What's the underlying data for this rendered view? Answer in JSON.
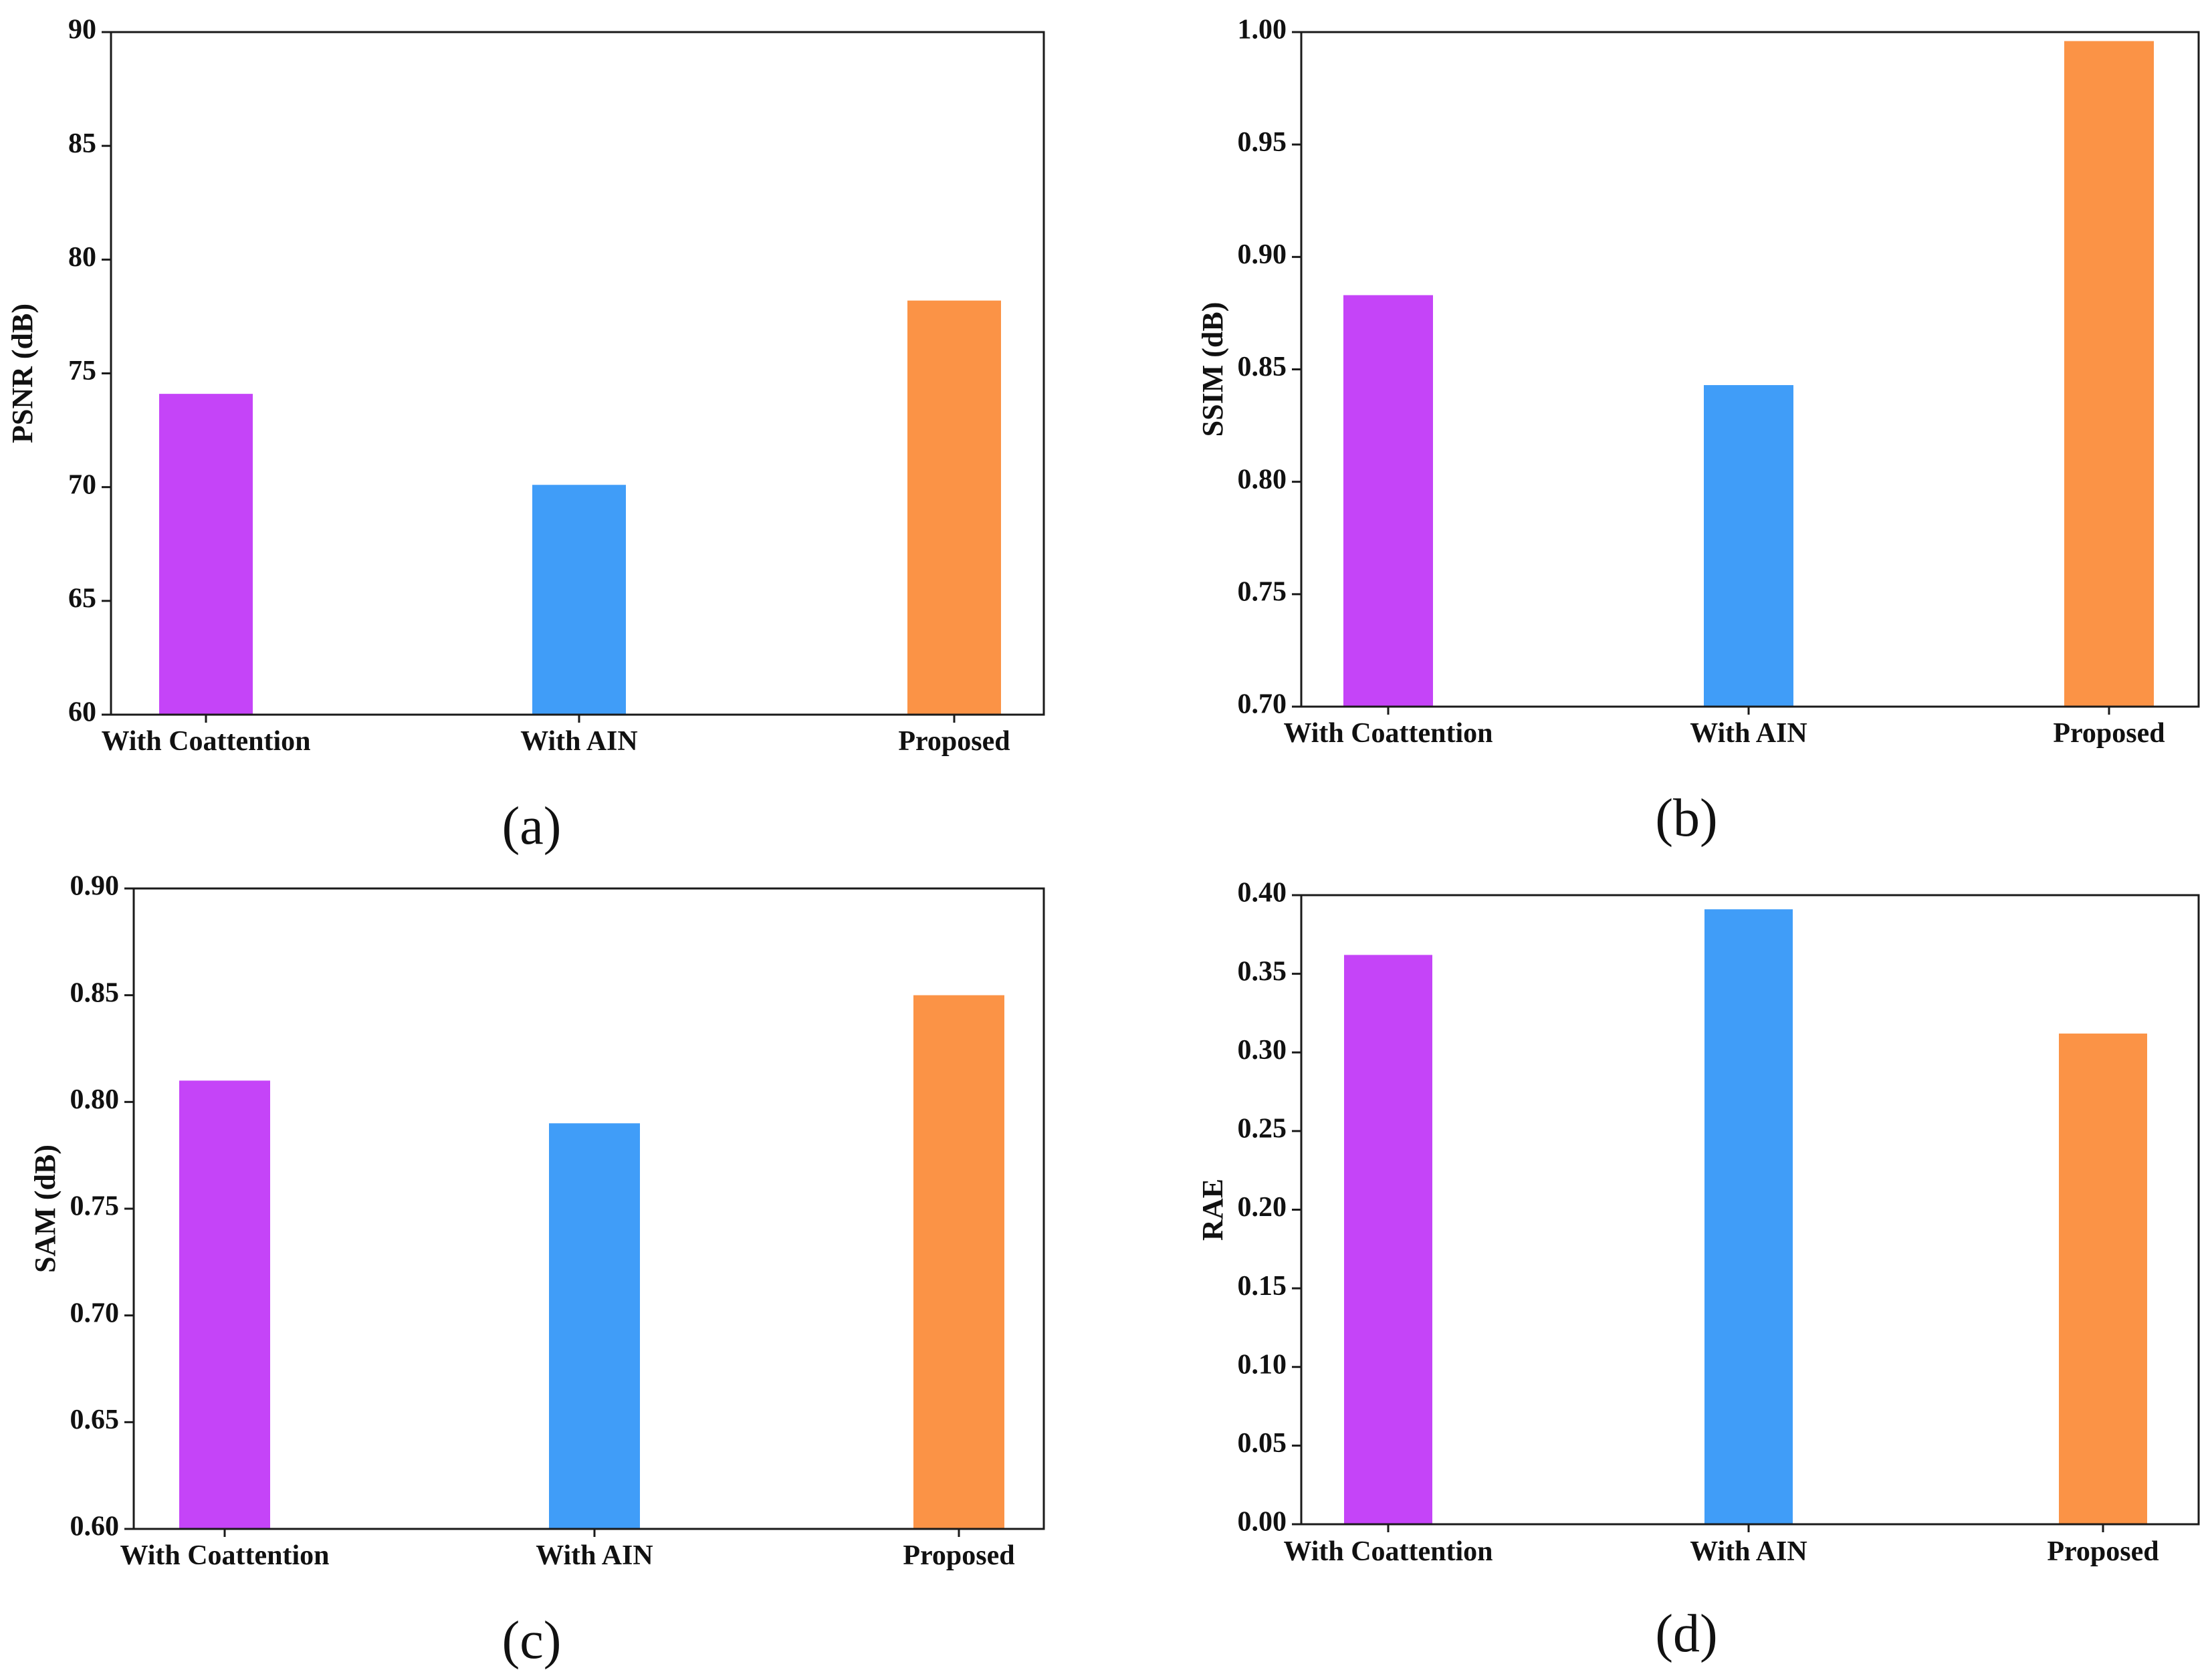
{
  "chart_data": [
    {
      "type": "bar",
      "panel_label": "(a)",
      "categories": [
        "With Coattention",
        "With AIN",
        "Proposed"
      ],
      "values": [
        74.1,
        70.1,
        78.2
      ],
      "colors": [
        "#c544f8",
        "#409df8",
        "#fb9346"
      ],
      "xlabel": "",
      "ylabel": "PSNR (dB)",
      "ylim": [
        60,
        90
      ],
      "yticks": [
        "60",
        "65",
        "70",
        "75",
        "80",
        "85",
        "90"
      ],
      "grid": false
    },
    {
      "type": "bar",
      "panel_label": "(b)",
      "categories": [
        "With Coattention",
        "With AIN",
        "Proposed"
      ],
      "values": [
        0.883,
        0.843,
        0.996
      ],
      "colors": [
        "#c544f8",
        "#409df8",
        "#fb9346"
      ],
      "xlabel": "",
      "ylabel": "SSIM (dB)",
      "ylim": [
        0.7,
        1.0
      ],
      "yticks": [
        "0.70",
        "0.75",
        "0.80",
        "0.85",
        "0.90",
        "0.95",
        "1.00"
      ],
      "grid": false
    },
    {
      "type": "bar",
      "panel_label": "(c)",
      "categories": [
        "With Coattention",
        "With AIN",
        "Proposed"
      ],
      "values": [
        0.81,
        0.79,
        0.85
      ],
      "colors": [
        "#c544f8",
        "#409df8",
        "#fb9346"
      ],
      "xlabel": "",
      "ylabel": "SAM (dB)",
      "ylim": [
        0.6,
        0.9
      ],
      "yticks": [
        "0.60",
        "0.65",
        "0.70",
        "0.75",
        "0.80",
        "0.85",
        "0.90"
      ],
      "grid": false
    },
    {
      "type": "bar",
      "panel_label": "(d)",
      "categories": [
        "With Coattention",
        "With AIN",
        "Proposed"
      ],
      "values": [
        0.362,
        0.391,
        0.312
      ],
      "colors": [
        "#c544f8",
        "#409df8",
        "#fb9346"
      ],
      "xlabel": "",
      "ylabel": "RAE",
      "ylim": [
        0.0,
        0.4
      ],
      "yticks": [
        "0.00",
        "0.05",
        "0.10",
        "0.15",
        "0.20",
        "0.25",
        "0.30",
        "0.35",
        "0.40"
      ],
      "grid": false
    }
  ]
}
